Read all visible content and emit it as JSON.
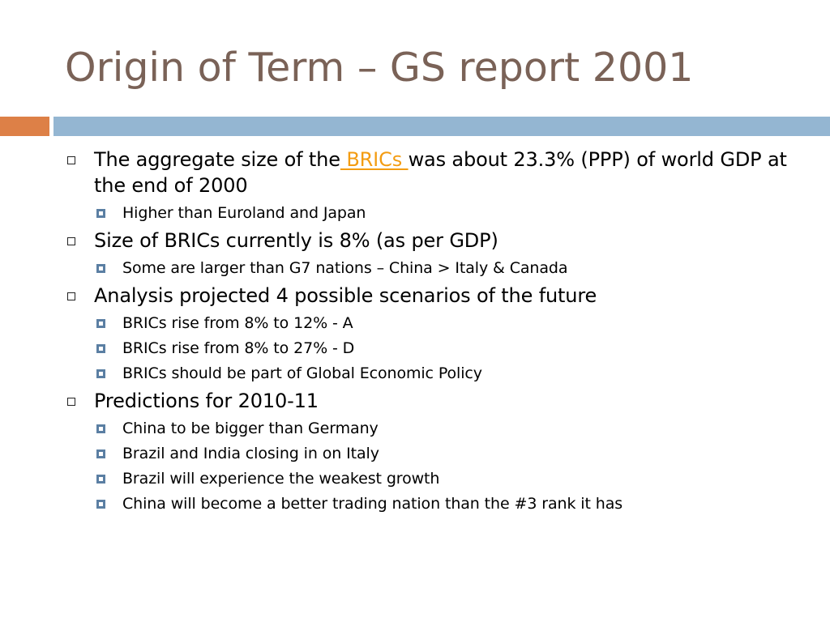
{
  "slide": {
    "title": "Origin of Term – GS report 2001",
    "colors": {
      "title": "#7a6257",
      "accent_bar": "#dd8047",
      "divider_bar": "#94b6d2",
      "link": "#f39c12",
      "sub_bullet": "#5b7fa3"
    },
    "bullets": [
      {
        "text_before": "The aggregate size of the",
        "link_text": " BRICs ",
        "text_after": "was about 23.3% (PPP) of world GDP at the end of 2000",
        "sub": [
          "Higher than Euroland and Japan"
        ]
      },
      {
        "text": "Size of BRICs currently is 8% (as per GDP)",
        "sub": [
          "Some are larger than G7 nations – China > Italy & Canada"
        ]
      },
      {
        "text": "Analysis projected 4 possible scenarios of the future",
        "sub": [
          "BRICs rise from 8% to 12% - A",
          "BRICs rise from 8% to 27% - D",
          "BRICs should be part of Global Economic Policy"
        ]
      },
      {
        "text": "Predictions for 2010-11",
        "sub": [
          "China to be bigger than Germany",
          "Brazil and India closing in on Italy",
          "Brazil will experience the weakest growth",
          "China will become a better trading nation than the #3 rank it has"
        ]
      }
    ]
  }
}
